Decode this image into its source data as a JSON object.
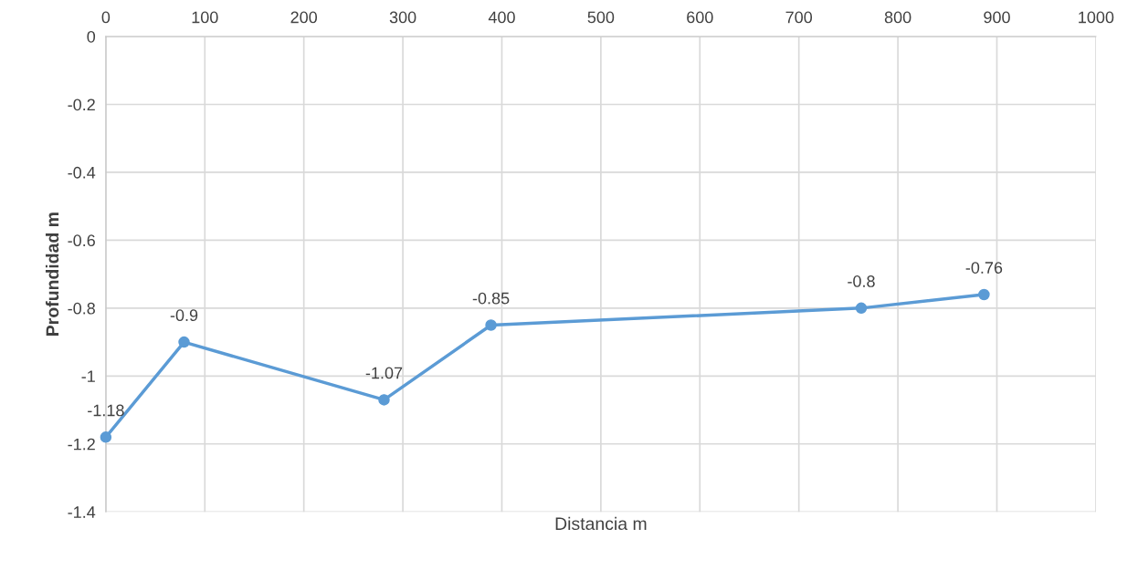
{
  "chart_data": {
    "type": "line",
    "xlabel": "Distancia m",
    "ylabel": "Profundidad m",
    "x": [
      0,
      79,
      281,
      389,
      763,
      887
    ],
    "series": [
      {
        "color": "#5b9bd5",
        "values": [
          -1.18,
          -0.9,
          -1.07,
          -0.85,
          -0.8,
          -0.76
        ]
      }
    ],
    "xlim": [
      0,
      1000
    ],
    "xticks": [
      0,
      100,
      200,
      300,
      400,
      500,
      600,
      700,
      800,
      900,
      1000
    ],
    "ylim": [
      -1.4,
      0
    ],
    "yticks": [
      0,
      -0.2,
      -0.4,
      -0.6,
      -0.8,
      -1,
      -1.2,
      -1.4
    ],
    "grid": true,
    "marker": "circle",
    "line_style": "solid",
    "data_labels": true
  }
}
